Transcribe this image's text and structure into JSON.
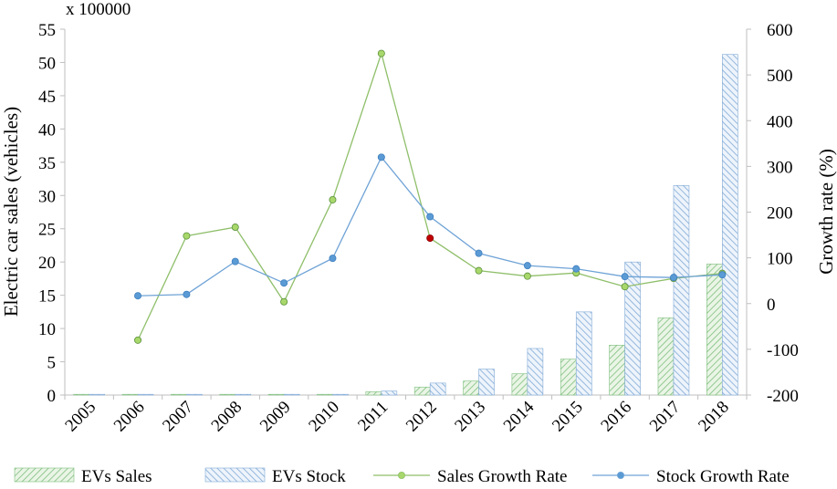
{
  "chart_data": {
    "type": "bar",
    "multiplier_label": "x 100000",
    "ylabel_left": "Electric car sales (vehicles)",
    "ylabel_right": "Growth rate (%)",
    "categories": [
      "2005",
      "2006",
      "2007",
      "2008",
      "2009",
      "2010",
      "2011",
      "2012",
      "2013",
      "2014",
      "2015",
      "2016",
      "2017",
      "2018"
    ],
    "left_axis": {
      "min": 0,
      "max": 55,
      "step": 5
    },
    "right_axis": {
      "min": -200,
      "max": 600,
      "step": 100
    },
    "grid": false,
    "legend_position": "bottom",
    "series": [
      {
        "name": "EVs Sales",
        "kind": "bar",
        "axis": "left",
        "color": "#7dbf7d",
        "pattern": "green-hatch",
        "values": [
          0.02,
          0.04,
          0.09,
          0.1,
          0.1,
          0.1,
          0.5,
          1.2,
          2.1,
          3.2,
          5.4,
          7.5,
          11.6,
          19.7
        ]
      },
      {
        "name": "EVs Stock",
        "kind": "bar",
        "axis": "left",
        "color": "#7fa9d6",
        "pattern": "blue-hatch",
        "values": [
          0.02,
          0.05,
          0.1,
          0.1,
          0.1,
          0.1,
          0.6,
          1.8,
          3.9,
          7.0,
          12.5,
          20.0,
          31.5,
          51.2
        ]
      },
      {
        "name": "Sales Growth Rate",
        "kind": "line",
        "axis": "right",
        "color": "#8fbf6a",
        "marker_fill": "#a8d86b",
        "values": [
          null,
          -80,
          148,
          167,
          4,
          227,
          547,
          143,
          72,
          60,
          67,
          37,
          55,
          66
        ],
        "highlight_index": 7,
        "highlight_color": "#c00000"
      },
      {
        "name": "Stock Growth Rate",
        "kind": "line",
        "axis": "right",
        "color": "#6fa3d6",
        "marker_fill": "#5b9bd5",
        "values": [
          null,
          17,
          20,
          92,
          45,
          99,
          320,
          190,
          110,
          83,
          76,
          59,
          57,
          63
        ]
      }
    ]
  },
  "colors": {
    "axis": "#bfbfbf",
    "text": "#000000"
  }
}
